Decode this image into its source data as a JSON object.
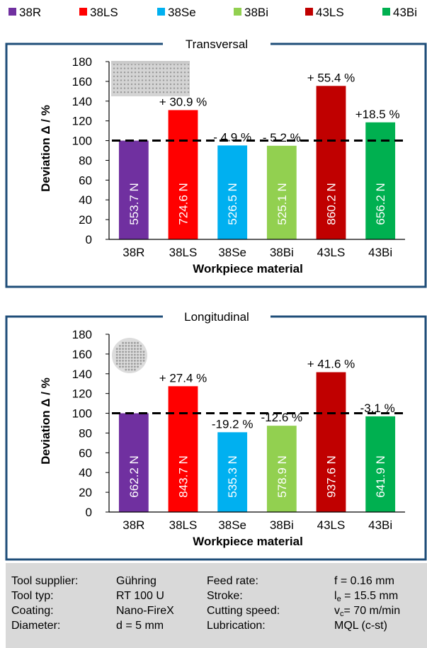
{
  "legend": [
    {
      "name": "38R",
      "color": "#7030a0"
    },
    {
      "name": "38LS",
      "color": "#ff0000"
    },
    {
      "name": "38Se",
      "color": "#00b0f0"
    },
    {
      "name": "38Bi",
      "color": "#92d050"
    },
    {
      "name": "43LS",
      "color": "#c00000"
    },
    {
      "name": "43Bi",
      "color": "#00b050"
    }
  ],
  "chart_data": [
    {
      "type": "bar",
      "title": "Transversal",
      "xlabel": "Workpiece material",
      "ylabel": "Deviation Δ / %",
      "ylim": [
        0,
        180
      ],
      "yticks": [
        0,
        20,
        40,
        60,
        80,
        100,
        120,
        140,
        160,
        180
      ],
      "reference_line": 100,
      "categories": [
        "38R",
        "38LS",
        "38Se",
        "38Bi",
        "43LS",
        "43Bi"
      ],
      "values": [
        100,
        130.9,
        95.1,
        94.8,
        155.4,
        118.5
      ],
      "bar_labels": [
        "553.7 N",
        "724.6 N",
        "526.5 N",
        "525.1 N",
        "860.2 N",
        "656.2 N"
      ],
      "deviation_labels": [
        "",
        "+ 30.9 %",
        "- 4.9 %",
        "- 5.2 %",
        "+ 55.4 %",
        "+18.5 %"
      ],
      "colors": [
        "#7030a0",
        "#ff0000",
        "#00b0f0",
        "#92d050",
        "#c00000",
        "#00b050"
      ],
      "inset_icon": "fiber-bundle-side-view-icon"
    },
    {
      "type": "bar",
      "title": "Longitudinal",
      "xlabel": "Workpiece material",
      "ylabel": "Deviation Δ / %",
      "ylim": [
        0,
        180
      ],
      "yticks": [
        0,
        20,
        40,
        60,
        80,
        100,
        120,
        140,
        160,
        180
      ],
      "reference_line": 100,
      "categories": [
        "38R",
        "38LS",
        "38Se",
        "38Bi",
        "43LS",
        "43Bi"
      ],
      "values": [
        100,
        127.4,
        80.8,
        87.4,
        141.6,
        96.9
      ],
      "bar_labels": [
        "662.2 N",
        "843.7 N",
        "535.3 N",
        "578.9 N",
        "937.6 N",
        "641.9 N"
      ],
      "deviation_labels": [
        "",
        "+ 27.4 %",
        "-19.2 %",
        "-12.6 %",
        "+ 41.6 %",
        "-3.1 %"
      ],
      "colors": [
        "#7030a0",
        "#ff0000",
        "#00b0f0",
        "#92d050",
        "#c00000",
        "#00b050"
      ],
      "inset_icon": "fiber-cross-section-icon"
    }
  ],
  "params": {
    "rows": [
      [
        "Tool supplier:",
        "Gühring",
        "Feed rate:",
        "f  = 0.16 mm"
      ],
      [
        "Tool typ:",
        "RT 100 U",
        "Stroke:",
        "l_e = 15.5 mm"
      ],
      [
        "Coating:",
        "Nano-FireX",
        "Cutting speed:",
        "v_c= 70 m/min"
      ],
      [
        "Diameter:",
        "d =  5 mm",
        "Lubrication:",
        "MQL (c-st)"
      ]
    ]
  }
}
